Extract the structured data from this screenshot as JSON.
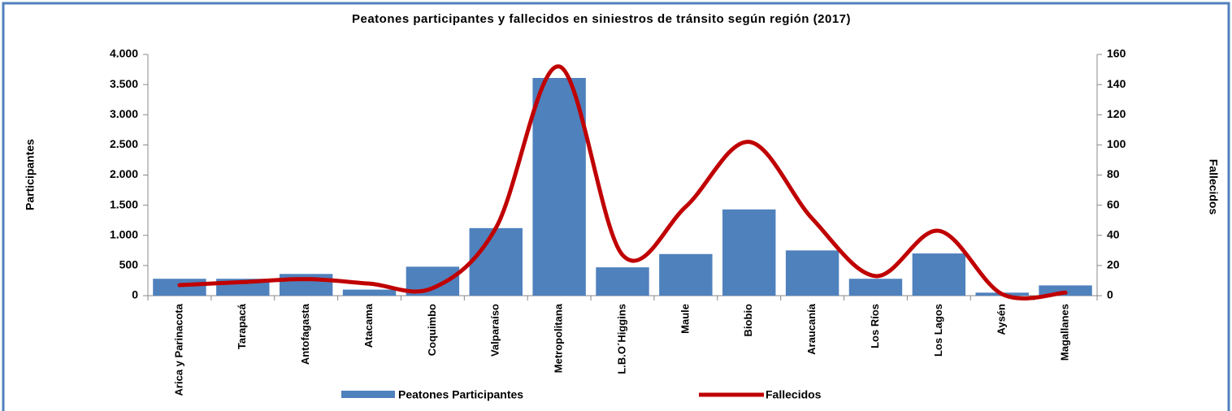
{
  "chart_data": {
    "type": "bar_line",
    "title": "Peatones participantes y fallecidos en siniestros de tránsito según región (2017)",
    "y_label": "Participantes",
    "y2_label": "Fallecidos",
    "categories": [
      "Arica y Parinacota",
      "Tarapacá",
      "Antofagasta",
      "Atacama",
      "Coquimbo",
      "Valparaíso",
      "Metropolitana",
      "L.B.O´Higgins",
      "Maule",
      "Biobio",
      "Araucanía",
      "Los Ríos",
      "Los Lagos",
      "Aysén",
      "Magallanes"
    ],
    "series": [
      {
        "name": "Peatones Participantes",
        "type": "bar",
        "color": "#4f81bd",
        "values": [
          280,
          280,
          360,
          100,
          480,
          1120,
          3610,
          470,
          690,
          1430,
          750,
          280,
          700,
          50,
          170
        ]
      },
      {
        "name": "Fallecidos",
        "type": "line",
        "axis": "y2",
        "color": "#c00000",
        "values": [
          7,
          9,
          11,
          8,
          5,
          45,
          152,
          27,
          59,
          102,
          51,
          13,
          43,
          1,
          2
        ]
      }
    ],
    "ylim": [
      0,
      4000
    ],
    "yticks": [
      0,
      500,
      {
        "value": 1000,
        "label": "1.000"
      },
      {
        "value": 1500,
        "label": "1.500"
      },
      {
        "value": 2000,
        "label": "2.000"
      },
      {
        "value": 2500,
        "label": "2.500"
      },
      {
        "value": 3000,
        "label": "3.000"
      },
      {
        "value": 3500,
        "label": "3.500"
      },
      {
        "value": 4000,
        "label": "4.000"
      }
    ],
    "y2lim": [
      0,
      160
    ],
    "y2ticks": [
      0,
      20,
      40,
      60,
      80,
      100,
      120,
      140,
      160
    ],
    "legend": "bottom"
  }
}
